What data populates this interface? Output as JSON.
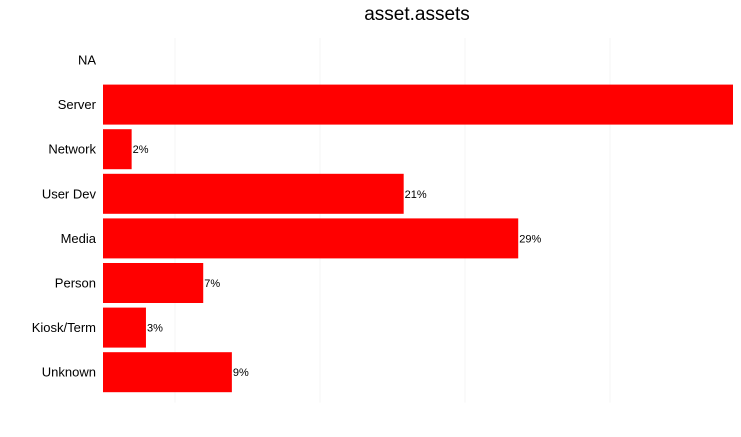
{
  "chart_data": {
    "type": "bar",
    "orientation": "horizontal",
    "title": "asset.assets",
    "xlabel": "",
    "ylabel": "",
    "categories": [
      "NA",
      "Server",
      "Network",
      "User Dev",
      "Media",
      "Person",
      "Kiosk/Term",
      "Unknown"
    ],
    "values": [
      null,
      44,
      2,
      21,
      29,
      7,
      3,
      9
    ],
    "data_labels": [
      "",
      "",
      "2%",
      "21%",
      "29%",
      "7%",
      "3%",
      "9%"
    ],
    "xlim": [
      0,
      44
    ],
    "grid": true,
    "legend": "none",
    "bar_color": "#ff0000",
    "grid_color": "#f4f4f4"
  }
}
